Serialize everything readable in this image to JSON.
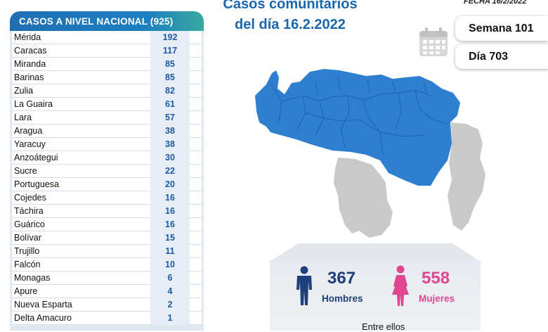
{
  "title": {
    "line1": "Casos comunitarios",
    "line2": "del día 16.2.2022"
  },
  "fecha": "FECHA 16/2/2022",
  "semana": "Semana 101",
  "dia": "Día 703",
  "table": {
    "header": "CASOS A NIVEL NACIONAL  (925)",
    "rows": [
      {
        "state": "Mérida",
        "cases": "192"
      },
      {
        "state": "Caracas",
        "cases": "117"
      },
      {
        "state": "Miranda",
        "cases": "85"
      },
      {
        "state": "Barinas",
        "cases": "85"
      },
      {
        "state": "Zulia",
        "cases": "82"
      },
      {
        "state": "La Guaira",
        "cases": "61"
      },
      {
        "state": "Lara",
        "cases": "57"
      },
      {
        "state": "Aragua",
        "cases": "38"
      },
      {
        "state": "Yaracuy",
        "cases": "38"
      },
      {
        "state": "Anzoátegui",
        "cases": "30"
      },
      {
        "state": "Sucre",
        "cases": "22"
      },
      {
        "state": "Portuguesa",
        "cases": "20"
      },
      {
        "state": "Cojedes",
        "cases": "16"
      },
      {
        "state": "Táchira",
        "cases": "16"
      },
      {
        "state": "Guárico",
        "cases": "16"
      },
      {
        "state": "Bolívar",
        "cases": "15"
      },
      {
        "state": "Trujillo",
        "cases": "11"
      },
      {
        "state": "Falcón",
        "cases": "10"
      },
      {
        "state": "Monagas",
        "cases": "6"
      },
      {
        "state": "Apure",
        "cases": "4"
      },
      {
        "state": "Nueva Esparta",
        "cases": "2"
      },
      {
        "state": "Delta Amacuro",
        "cases": "1"
      }
    ]
  },
  "stats": {
    "men_count": "367",
    "men_label": "Hombres",
    "women_count": "558",
    "women_label": "Mujeres",
    "entre_ellos": "Entre ellos"
  },
  "colors": {
    "brand_blue": "#1a66ae",
    "map_blue": "#2f7fd0",
    "map_gray": "#c9c9c9",
    "men": "#1d3f7a",
    "women": "#e0458f"
  },
  "icons": [
    "calendar-icon",
    "man-icon",
    "woman-icon"
  ]
}
